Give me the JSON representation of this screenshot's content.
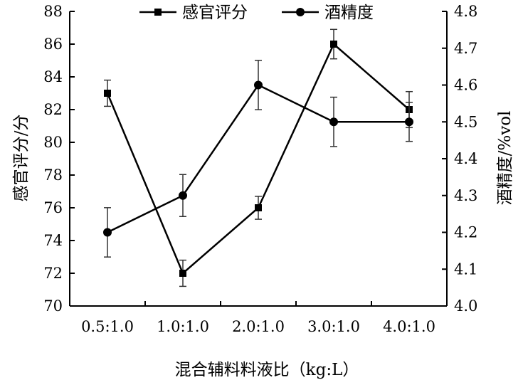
{
  "chart_data": {
    "type": "line",
    "title": "",
    "xlabel": "混合辅料料液比（kg:L）",
    "ylabel_left": "感官评分/分",
    "ylabel_right": "酒精度/%vol",
    "categories": [
      "0.5:1.0",
      "1.0:1.0",
      "2.0:1.0",
      "3.0:1.0",
      "4.0:1.0"
    ],
    "y_left": {
      "min": 70,
      "max": 88,
      "ticks": [
        "70",
        "72",
        "74",
        "76",
        "78",
        "80",
        "82",
        "84",
        "86",
        "88"
      ]
    },
    "y_right": {
      "min": 4.0,
      "max": 4.8,
      "ticks": [
        "4.0",
        "4.1",
        "4.2",
        "4.3",
        "4.4",
        "4.5",
        "4.6",
        "4.7",
        "4.8"
      ]
    },
    "grid": false,
    "legend_position": "top",
    "series": [
      {
        "name": "感官评分",
        "axis": "left",
        "marker": "square",
        "values": [
          83,
          72,
          76,
          86,
          82
        ],
        "errors": [
          0.8,
          0.8,
          0.7,
          0.9,
          1.1
        ],
        "color": "#000000"
      },
      {
        "name": "酒精度",
        "axis": "right",
        "marker": "circle",
        "values": [
          4.2,
          4.3,
          4.6,
          4.5,
          4.5
        ],
        "errors": [
          0.067,
          0.057,
          0.067,
          0.067,
          0.053
        ],
        "color": "#000000"
      }
    ]
  }
}
